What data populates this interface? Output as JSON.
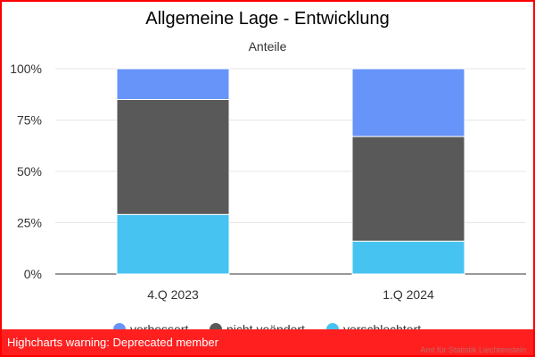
{
  "chart_data": {
    "type": "bar",
    "stacked": true,
    "title": "Allgemeine Lage - Entwicklung",
    "subtitle": "Anteile",
    "categories": [
      "4.Q 2023",
      "1.Q 2024"
    ],
    "series": [
      {
        "name": "verbessert",
        "color": "#6794f9",
        "values": [
          15,
          33
        ]
      },
      {
        "name": "nicht veändert",
        "color": "#595959",
        "values": [
          56,
          51
        ]
      },
      {
        "name": "verschlechtert",
        "color": "#46c3f1",
        "values": [
          29,
          16
        ]
      }
    ],
    "ylim": [
      0,
      100
    ],
    "yticks": [
      "0%",
      "25%",
      "50%",
      "75%",
      "100%"
    ],
    "ytick_values": [
      0,
      25,
      50,
      75,
      100
    ],
    "grid": true,
    "legend": "bottom-center"
  },
  "warning": "Highcharts warning: Deprecated member",
  "credits": "Amt für Statistik Liechtenstein"
}
